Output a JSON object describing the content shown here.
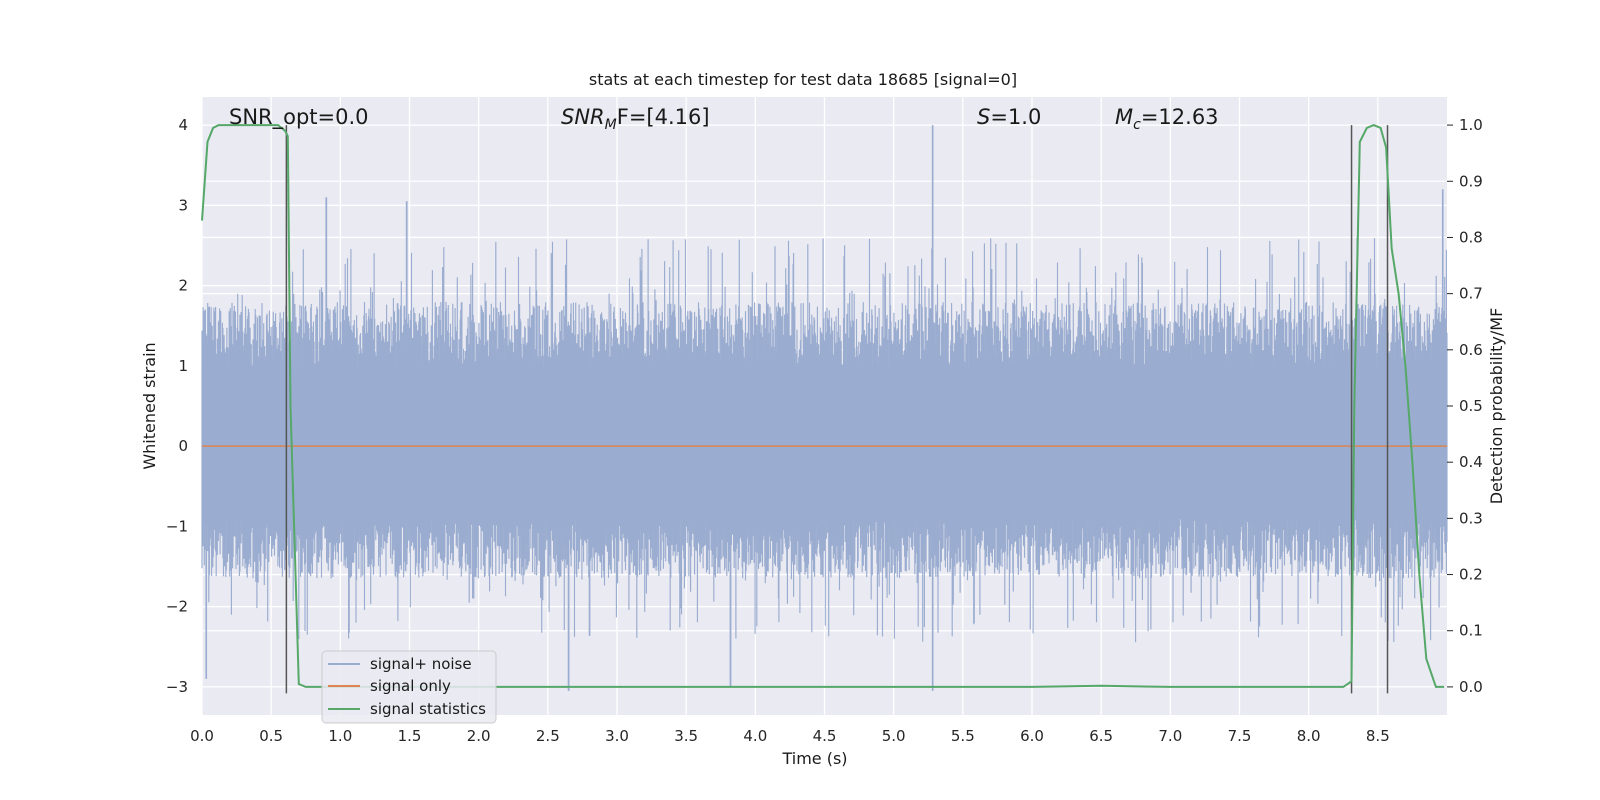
{
  "chart_data": {
    "type": "line",
    "title": "stats at each timestep for test data 18685 [signal=0]",
    "xlabel": "Time (s)",
    "ylabel_left": "Whitened strain",
    "ylabel_right": "Detection probability/MF",
    "xlim": [
      0.0,
      9.0
    ],
    "ylim_left": [
      -3.35,
      4.35
    ],
    "ylim_right": [
      -0.05,
      1.05
    ],
    "x_ticks": [
      "0.0",
      "0.5",
      "1.0",
      "1.5",
      "2.0",
      "2.5",
      "3.0",
      "3.5",
      "4.0",
      "4.5",
      "5.0",
      "5.5",
      "6.0",
      "6.5",
      "7.0",
      "7.5",
      "8.0",
      "8.5"
    ],
    "x_tick_values": [
      0.0,
      0.5,
      1.0,
      1.5,
      2.0,
      2.5,
      3.0,
      3.5,
      4.0,
      4.5,
      5.0,
      5.5,
      6.0,
      6.5,
      7.0,
      7.5,
      8.0,
      8.5
    ],
    "y_left_ticks": [
      "−3",
      "−2",
      "−1",
      "0",
      "1",
      "2",
      "3",
      "4"
    ],
    "y_left_tick_values": [
      -3,
      -2,
      -1,
      0,
      1,
      2,
      3,
      4
    ],
    "y_right_ticks": [
      "0.0",
      "0.1",
      "0.2",
      "0.3",
      "0.4",
      "0.5",
      "0.6",
      "0.7",
      "0.8",
      "0.9",
      "1.0"
    ],
    "y_right_tick_values": [
      0.0,
      0.1,
      0.2,
      0.3,
      0.4,
      0.5,
      0.6,
      0.7,
      0.8,
      0.9,
      1.0
    ],
    "annotations": {
      "snr_opt": "SNR_opt=0.0",
      "snr_mf_sym": "SNR",
      "snr_mf_sub": "M",
      "snr_mf_rest": "F=[4.16]",
      "s_sym": "S",
      "s_rest": "=1.0",
      "mc_sym": "M",
      "mc_sub": "c",
      "mc_rest": "=12.63"
    },
    "legend": {
      "location": "lower-left",
      "entries": [
        "signal+ noise",
        "signal only",
        "signal statistics"
      ]
    },
    "series": [
      {
        "name": "signal+ noise",
        "axis": "left",
        "style": "filled-noise",
        "x_range": [
          0.0,
          9.0
        ],
        "typical_envelope": [
          -1.65,
          1.8
        ],
        "notable_peaks": [
          {
            "x": 0.03,
            "y": -2.9
          },
          {
            "x": 0.9,
            "y": 3.1
          },
          {
            "x": 1.48,
            "y": 3.05
          },
          {
            "x": 2.65,
            "y": -3.05
          },
          {
            "x": 3.82,
            "y": -3.0
          },
          {
            "x": 5.28,
            "y": 4.0
          },
          {
            "x": 5.28,
            "y": -3.05
          },
          {
            "x": 8.97,
            "y": 3.2
          }
        ]
      },
      {
        "name": "signal only",
        "axis": "left",
        "x": [
          0.0,
          9.0
        ],
        "y": [
          0.0,
          0.0
        ]
      },
      {
        "name": "signal statistics",
        "axis": "right",
        "x": [
          0.0,
          0.04,
          0.08,
          0.12,
          0.2,
          0.3,
          0.4,
          0.5,
          0.55,
          0.6,
          0.62,
          0.64,
          0.7,
          0.75,
          1.0,
          2.0,
          3.0,
          4.0,
          5.0,
          6.0,
          6.5,
          7.0,
          8.0,
          8.25,
          8.31,
          8.33,
          8.37,
          8.42,
          8.47,
          8.52,
          8.56,
          8.6,
          8.65,
          8.7,
          8.75,
          8.8,
          8.85,
          8.92,
          8.98
        ],
        "y": [
          0.83,
          0.97,
          0.995,
          1.0,
          1.0,
          1.0,
          1.0,
          1.0,
          1.0,
          0.99,
          0.98,
          0.5,
          0.005,
          0.0,
          0.0,
          0.0,
          0.0,
          0.0,
          0.0,
          0.0,
          0.002,
          0.0,
          0.0,
          0.0,
          0.01,
          0.5,
          0.97,
          0.995,
          1.0,
          0.995,
          0.96,
          0.78,
          0.7,
          0.57,
          0.4,
          0.2,
          0.05,
          0.0,
          0.0
        ]
      }
    ],
    "vertical_markers": [
      {
        "x": 0.61,
        "y_from": 4.0,
        "y_to": -3.08
      },
      {
        "x": 8.31,
        "y_from": 4.0,
        "y_to": -3.08
      },
      {
        "x": 8.57,
        "y_from": 4.0,
        "y_to": -3.08
      }
    ],
    "colors": {
      "background": "#eaeaf2",
      "grid": "#ffffff",
      "noise": "#9aaccf",
      "signal": "#dd8452",
      "statistics": "#55a868",
      "marker": "#555555"
    }
  }
}
